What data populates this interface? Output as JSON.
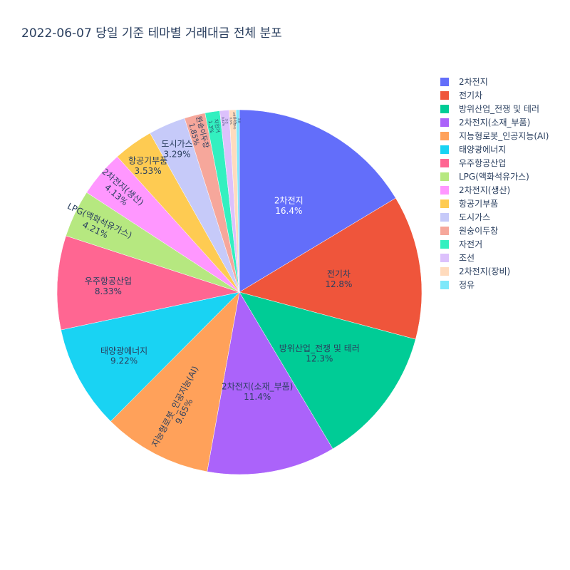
{
  "chart_data": {
    "type": "pie",
    "title": "2022-06-07 당일 기준 테마별 거래대금 전체 분포",
    "legend_position": "right",
    "slices": [
      {
        "label": "2차전지",
        "value": 16.4,
        "pct_text": "16.4%",
        "color": "#636efa"
      },
      {
        "label": "전기차",
        "value": 12.8,
        "pct_text": "12.8%",
        "color": "#ef553b"
      },
      {
        "label": "방위산업_전쟁 및 테러",
        "value": 12.3,
        "pct_text": "12.3%",
        "color": "#00cc96"
      },
      {
        "label": "2차전지(소재_부품)",
        "value": 11.4,
        "pct_text": "11.4%",
        "color": "#ab63fa"
      },
      {
        "label": "지능형로봇_인공지능(AI)",
        "value": 9.65,
        "pct_text": "9.65%",
        "color": "#ffa15a"
      },
      {
        "label": "태양광에너지",
        "value": 9.22,
        "pct_text": "9.22%",
        "color": "#19d3f3"
      },
      {
        "label": "우주항공산업",
        "value": 8.33,
        "pct_text": "8.33%",
        "color": "#ff6692"
      },
      {
        "label": "LPG(액화석유가스)",
        "value": 4.21,
        "pct_text": "4.21%",
        "color": "#b6e880"
      },
      {
        "label": "2차전지(생산)",
        "value": 4.13,
        "pct_text": "4.13%",
        "color": "#ff97ff"
      },
      {
        "label": "항공기부품",
        "value": 3.53,
        "pct_text": "3.53%",
        "color": "#fecb52"
      },
      {
        "label": "도시가스",
        "value": 3.29,
        "pct_text": "3.29%",
        "color": "#c6caf9"
      },
      {
        "label": "원숭이두창",
        "value": 1.85,
        "pct_text": "1.85%",
        "color": "#f6a79b"
      },
      {
        "label": "자전거",
        "value": 1.3,
        "pct_text": "1.3%",
        "color": "#33f0c0"
      },
      {
        "label": "조선",
        "value": 0.82,
        "pct_text": "0.82%",
        "color": "#dcc1fc"
      },
      {
        "label": "2차전지(장비)",
        "value": 0.6,
        "pct_text": "0.6%",
        "color": "#ffdbbd"
      },
      {
        "label": "정유",
        "value": 0.3,
        "pct_text": "0.3%",
        "color": "#7ee8fa"
      }
    ]
  }
}
